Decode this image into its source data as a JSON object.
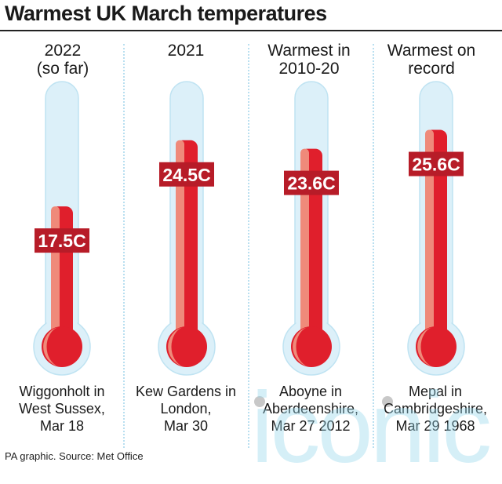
{
  "chart_data": {
    "type": "bar",
    "title": "Warmest UK March temperatures",
    "categories": [
      "2022\n(so far)",
      "2021",
      "Warmest in\n2010-20",
      "Warmest on\nrecord"
    ],
    "values": [
      17.5,
      24.5,
      23.6,
      25.6
    ],
    "value_labels": [
      "17.5C",
      "24.5C",
      "23.6C",
      "25.6C"
    ],
    "locations": [
      "Wiggonholt in\nWest Sussex,\nMar 18",
      "Kew Gardens in\nLondon,\nMar 30",
      "Aboyne in\nAberdeenshire,\nMar 27 2012",
      "Mepal in\nCambridgeshire,\nMar 29 1968"
    ],
    "ylim": [
      0,
      30
    ],
    "xlabel": "",
    "ylabel": "",
    "grid": false,
    "legend": "none",
    "colors": {
      "mercury": "#e01f2c",
      "mercury_highlight": "#ef8a7a",
      "tube": "#dcf0f9",
      "tube_outline": "#bfe3f2",
      "label_bg": "#b71c28"
    }
  },
  "footer": {
    "source": "PA graphic. Source: Met Office"
  },
  "watermark": {
    "text": "iconic"
  }
}
